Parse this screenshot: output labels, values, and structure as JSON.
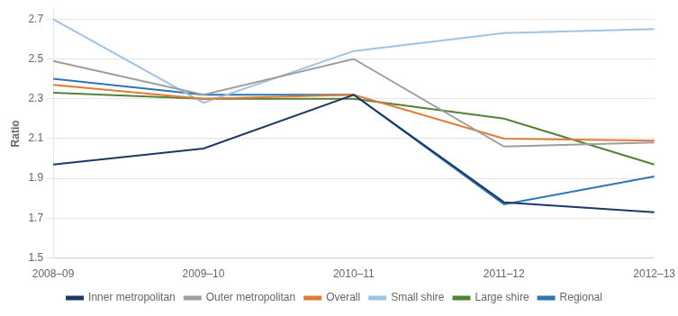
{
  "chart_data": {
    "type": "line",
    "ylabel": "Ratio",
    "categories": [
      "2008–09",
      "2009–10",
      "2010–11",
      "2011–12",
      "2012–13"
    ],
    "series": [
      {
        "name": "Inner metropolitan",
        "color": "#1f3864",
        "values": [
          1.97,
          2.05,
          2.32,
          1.78,
          1.73
        ]
      },
      {
        "name": "Outer metropolitan",
        "color": "#9e9e9e",
        "values": [
          2.49,
          2.32,
          2.5,
          2.06,
          2.08
        ]
      },
      {
        "name": "Overall",
        "color": "#e07b39",
        "values": [
          2.37,
          2.3,
          2.32,
          2.1,
          2.09
        ]
      },
      {
        "name": "Small shire",
        "color": "#9dc3e6",
        "values": [
          2.7,
          2.28,
          2.54,
          2.63,
          2.65
        ]
      },
      {
        "name": "Large shire",
        "color": "#548235",
        "values": [
          2.33,
          2.3,
          2.3,
          2.2,
          1.97
        ]
      },
      {
        "name": "Regional",
        "color": "#2e75b6",
        "values": [
          2.4,
          2.32,
          2.32,
          1.77,
          1.91
        ]
      }
    ],
    "ylim": [
      1.5,
      2.75
    ],
    "yticks": [
      1.5,
      1.7,
      1.9,
      2.1,
      2.3,
      2.5,
      2.7
    ],
    "grid": true,
    "legend": "bottom"
  }
}
